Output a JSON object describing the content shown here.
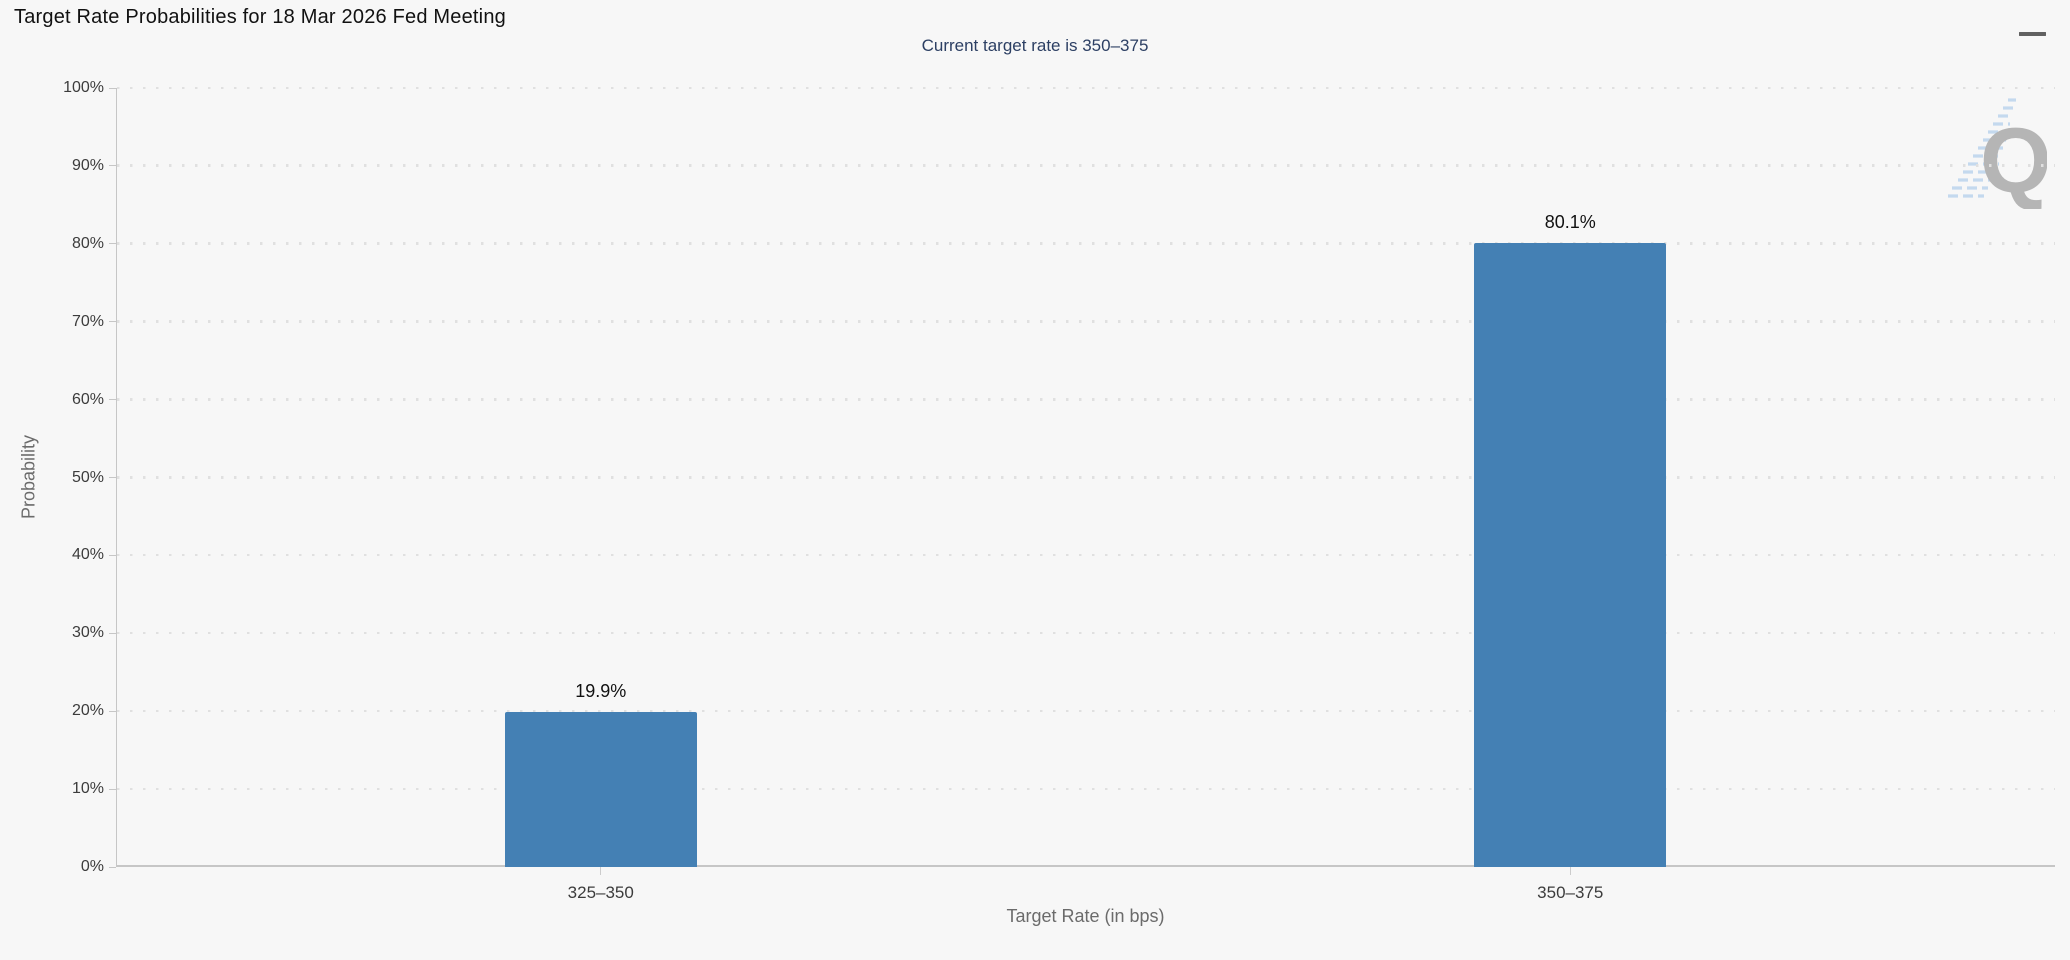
{
  "header": {
    "title": "Target Rate Probabilities for 18 Mar 2026 Fed Meeting",
    "subtitle": "Current target rate is 350–375"
  },
  "icons": {
    "menu": "hamburger-icon"
  },
  "watermark": {
    "letter": "Q"
  },
  "chart_data": {
    "type": "bar",
    "title": "Target Rate Probabilities for 18 Mar 2026 Fed Meeting",
    "subtitle": "Current target rate is 350–375",
    "categories": [
      "325–350",
      "350–375"
    ],
    "values": [
      19.9,
      80.1
    ],
    "data_labels": [
      "19.9%",
      "80.1%"
    ],
    "xlabel": "Target Rate (in bps)",
    "ylabel": "Probability",
    "ylim": [
      0,
      100
    ],
    "ytick_step": 10,
    "ytick_labels": [
      "0%",
      "10%",
      "20%",
      "30%",
      "40%",
      "50%",
      "60%",
      "70%",
      "80%",
      "90%",
      "100%"
    ],
    "grid": "horizontal-dotted",
    "legend": "none",
    "colors": {
      "bar": "#4480b4",
      "subtitle_text": "#2c3f63",
      "axis_line": "#c6c6c6",
      "grid_dot": "#e0e0e0",
      "background": "#f7f7f7"
    }
  }
}
